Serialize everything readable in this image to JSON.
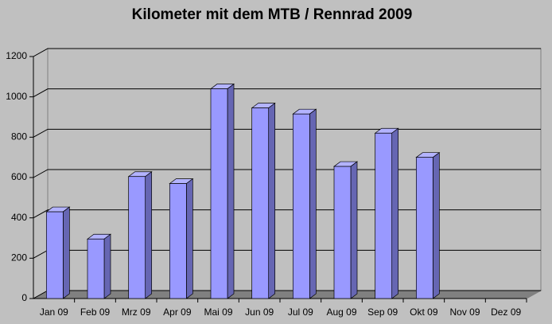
{
  "chart_data": {
    "type": "bar",
    "title": "Kilometer mit dem MTB / Rennrad 2009",
    "categories": [
      "Jan 09",
      "Feb 09",
      "Mrz 09",
      "Apr 09",
      "Mai 09",
      "Jun 09",
      "Jul 09",
      "Aug 09",
      "Sep 09",
      "Okt 09",
      "Nov 09",
      "Dez 09"
    ],
    "values": [
      430,
      295,
      605,
      570,
      1040,
      945,
      915,
      655,
      820,
      700,
      null,
      null
    ],
    "color": "#9999ff",
    "ylim": [
      0,
      1200
    ],
    "yticks": [
      0,
      200,
      400,
      600,
      800,
      1000,
      1200
    ],
    "grid": true
  }
}
